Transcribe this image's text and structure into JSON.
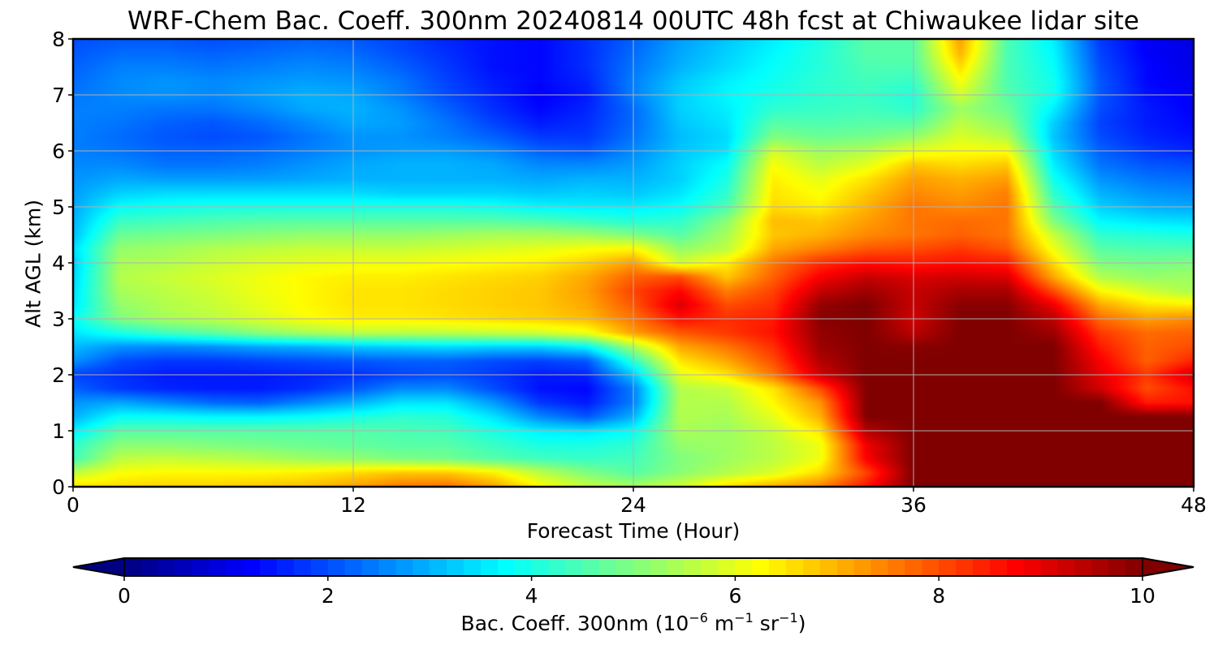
{
  "chart_data": {
    "type": "heatmap",
    "title": "WRF-Chem Bac. Coeff. 300nm  20240814 00UTC 48h fcst at Chiwaukee lidar site",
    "xlabel": "Forecast Time (Hour)",
    "ylabel": "Alt AGL (km)",
    "xlim": [
      0,
      48
    ],
    "ylim": [
      0,
      8
    ],
    "xticks": [
      0,
      12,
      24,
      36,
      48
    ],
    "yticks": [
      0,
      1,
      2,
      3,
      4,
      5,
      6,
      7,
      8
    ],
    "grid": true,
    "colormap": "jet",
    "colorbar": {
      "orientation": "horizontal",
      "position": "bottom",
      "range": [
        0,
        10
      ],
      "extend": "both",
      "ticks": [
        0,
        2,
        4,
        6,
        8,
        10
      ],
      "label_prefix": "Bac. Coeff. 300nm  (10",
      "label_exp1": "−6",
      "label_mid": " m",
      "label_exp2": "−1",
      "label_mid2": " sr",
      "label_exp3": "−1",
      "label_suffix": ")"
    },
    "x": [
      0,
      2,
      4,
      6,
      8,
      10,
      12,
      14,
      16,
      18,
      20,
      22,
      24,
      26,
      28,
      30,
      32,
      34,
      36,
      38,
      40,
      42,
      44,
      46,
      48
    ],
    "y": [
      0,
      0.25,
      0.5,
      0.75,
      1,
      1.25,
      1.5,
      1.75,
      2,
      2.25,
      2.5,
      2.75,
      3,
      3.25,
      3.5,
      3.75,
      4,
      4.25,
      4.5,
      4.75,
      5,
      5.25,
      5.5,
      5.75,
      6,
      6.25,
      6.5,
      6.75,
      7,
      7.25,
      7.5,
      7.75,
      8
    ],
    "values": [
      [
        6.6,
        6.6,
        6.7,
        6.7,
        6.8,
        6.9,
        7.2,
        7.6,
        7.7,
        7.2,
        6.3,
        5.7,
        5.4,
        5.8,
        6.6,
        7.1,
        7.5,
        8.6,
        10,
        10,
        10,
        10,
        10,
        10,
        10
      ],
      [
        5.6,
        6.2,
        6.3,
        6.3,
        6.3,
        6.4,
        6.6,
        6.8,
        6.8,
        6.4,
        5.6,
        5.0,
        4.6,
        5.1,
        5.5,
        5.9,
        6.6,
        8.1,
        10,
        10,
        10,
        10,
        10,
        10,
        10
      ],
      [
        4.4,
        5.6,
        5.7,
        5.6,
        5.5,
        5.3,
        5.2,
        5.0,
        4.9,
        4.6,
        4.4,
        4.3,
        4.4,
        5.0,
        5.3,
        5.6,
        6.1,
        8.8,
        10,
        10,
        10,
        10,
        10,
        10,
        10
      ],
      [
        4.2,
        5.1,
        5.1,
        5.0,
        4.9,
        4.8,
        4.7,
        4.6,
        4.6,
        4.3,
        4.0,
        4.0,
        4.2,
        5.2,
        5.3,
        5.6,
        6.1,
        8.9,
        10,
        10,
        10,
        10,
        10,
        10,
        10
      ],
      [
        3.6,
        4.6,
        4.6,
        4.6,
        4.6,
        4.6,
        4.6,
        4.5,
        4.4,
        4.0,
        3.6,
        3.5,
        3.8,
        5.4,
        5.3,
        5.7,
        6.5,
        9.5,
        10,
        10,
        10,
        10,
        10,
        10,
        10
      ],
      [
        3.0,
        3.8,
        3.8,
        3.7,
        3.7,
        3.8,
        4.0,
        4.2,
        4.1,
        3.5,
        2.6,
        2.1,
        3.0,
        5.5,
        5.4,
        6.0,
        7.0,
        10,
        10,
        10,
        10,
        10,
        10,
        10,
        10
      ],
      [
        2.7,
        2.9,
        2.6,
        2.3,
        2.2,
        2.6,
        3.0,
        3.5,
        3.5,
        2.8,
        1.8,
        1.5,
        2.5,
        5.5,
        5.5,
        6.3,
        7.3,
        10,
        10,
        10,
        10,
        10,
        10,
        8.5,
        8.6
      ],
      [
        2.2,
        1.8,
        1.6,
        1.5,
        1.5,
        1.7,
        2.1,
        2.6,
        2.6,
        2.0,
        1.4,
        1.3,
        2.5,
        5.5,
        5.7,
        6.5,
        8.0,
        10,
        10,
        10,
        10,
        10,
        9.2,
        8.0,
        8.6
      ],
      [
        1.9,
        1.7,
        1.5,
        1.5,
        1.5,
        1.6,
        1.7,
        1.9,
        2.0,
        1.8,
        1.5,
        1.6,
        3.2,
        6.0,
        6.5,
        7.6,
        9.2,
        10,
        10,
        10,
        10,
        10,
        9.0,
        8.2,
        9.2
      ],
      [
        2.7,
        2.0,
        1.8,
        1.8,
        1.9,
        2.0,
        2.1,
        2.2,
        2.2,
        2.0,
        1.9,
        2.1,
        4.2,
        6.5,
        7.1,
        8.0,
        9.5,
        10,
        10,
        10,
        10,
        10,
        8.8,
        7.8,
        8.4
      ],
      [
        3.1,
        2.7,
        2.6,
        2.7,
        2.9,
        3.0,
        3.2,
        3.3,
        3.4,
        3.3,
        3.3,
        3.7,
        5.4,
        7.1,
        7.6,
        8.3,
        9.7,
        10,
        9.9,
        10,
        10,
        10,
        8.5,
        7.8,
        8.0
      ],
      [
        3.5,
        4.0,
        4.4,
        4.7,
        5.1,
        5.4,
        5.6,
        5.6,
        5.6,
        5.7,
        5.8,
        6.1,
        7.2,
        7.9,
        8.2,
        8.6,
        9.8,
        10,
        9.4,
        10,
        10,
        9.7,
        8.2,
        7.7,
        7.8
      ],
      [
        3.8,
        5.0,
        5.4,
        5.6,
        5.9,
        6.2,
        6.4,
        6.4,
        6.5,
        6.6,
        6.7,
        6.9,
        7.6,
        8.6,
        8.3,
        8.5,
        9.9,
        10,
        9.2,
        10,
        10,
        9.4,
        7.7,
        7.2,
        7.4
      ],
      [
        3.5,
        5.2,
        5.5,
        5.7,
        6.0,
        6.3,
        6.5,
        6.5,
        6.6,
        6.7,
        6.8,
        7.1,
        7.9,
        9.1,
        8.0,
        8.3,
        9.8,
        10,
        9.3,
        9.9,
        9.9,
        8.9,
        7.1,
        6.5,
        6.4
      ],
      [
        3.4,
        5.4,
        5.6,
        5.8,
        6.1,
        6.3,
        6.5,
        6.5,
        6.6,
        6.7,
        6.8,
        7.2,
        8.1,
        8.7,
        7.5,
        8.1,
        9.3,
        9.7,
        9.3,
        9.6,
        9.6,
        8.0,
        6.3,
        5.8,
        5.4
      ],
      [
        3.3,
        5.5,
        5.7,
        5.9,
        6.1,
        6.3,
        6.4,
        6.4,
        6.5,
        6.6,
        6.7,
        7.1,
        7.8,
        8.0,
        6.8,
        7.8,
        8.8,
        9.3,
        9.1,
        9.2,
        9.1,
        7.1,
        5.5,
        5.2,
        5.3
      ],
      [
        3.2,
        5.4,
        5.5,
        5.7,
        5.9,
        6.0,
        6.1,
        6.1,
        6.2,
        6.3,
        6.4,
        6.7,
        7.2,
        5.8,
        6.4,
        7.6,
        8.3,
        8.6,
        8.5,
        8.6,
        8.5,
        6.6,
        5.0,
        4.9,
        5.0
      ],
      [
        3.4,
        5.2,
        5.3,
        5.5,
        5.6,
        5.7,
        5.7,
        5.7,
        5.8,
        5.9,
        6.0,
        6.2,
        6.3,
        5.2,
        5.6,
        7.1,
        7.5,
        7.9,
        8.0,
        8.2,
        7.9,
        6.1,
        4.6,
        4.5,
        4.5
      ],
      [
        3.1,
        4.8,
        4.9,
        5.0,
        5.1,
        5.2,
        5.2,
        5.2,
        5.3,
        5.4,
        5.4,
        5.3,
        5.0,
        4.6,
        5.4,
        6.8,
        7.0,
        7.4,
        7.6,
        7.8,
        7.6,
        5.7,
        4.2,
        4.1,
        4.0
      ],
      [
        3.0,
        4.3,
        4.4,
        4.5,
        4.6,
        4.6,
        4.6,
        4.6,
        4.6,
        4.6,
        4.5,
        4.3,
        4.1,
        4.2,
        5.1,
        6.9,
        6.8,
        7.2,
        7.6,
        7.7,
        7.6,
        5.0,
        3.7,
        3.5,
        3.4
      ],
      [
        2.9,
        3.8,
        3.9,
        4.0,
        4.0,
        4.0,
        4.0,
        4.0,
        4.0,
        3.9,
        3.7,
        3.6,
        3.6,
        3.8,
        4.5,
        6.6,
        6.4,
        7.0,
        7.6,
        7.4,
        7.6,
        4.6,
        3.3,
        3.0,
        2.9
      ],
      [
        2.8,
        3.3,
        3.4,
        3.4,
        3.4,
        3.4,
        3.4,
        3.3,
        3.3,
        3.3,
        3.2,
        3.3,
        3.2,
        3.5,
        4.2,
        6.5,
        6.2,
        6.8,
        7.4,
        7.2,
        7.5,
        4.2,
        3.0,
        2.7,
        2.6
      ],
      [
        2.7,
        2.9,
        2.8,
        2.8,
        2.8,
        2.9,
        3.0,
        3.0,
        3.0,
        3.0,
        2.9,
        3.0,
        3.0,
        3.3,
        4.0,
        6.4,
        6.0,
        6.5,
        7.2,
        7.0,
        7.2,
        3.9,
        2.7,
        2.4,
        2.3
      ],
      [
        2.6,
        2.6,
        2.4,
        2.4,
        2.5,
        2.7,
        2.9,
        3.0,
        3.0,
        2.9,
        2.6,
        2.6,
        2.8,
        3.3,
        3.8,
        6.2,
        5.6,
        6.0,
        6.8,
        6.6,
        6.8,
        3.6,
        2.4,
        2.1,
        2.0
      ],
      [
        2.5,
        2.4,
        2.2,
        2.2,
        2.3,
        2.5,
        2.7,
        2.8,
        2.8,
        2.6,
        2.2,
        2.1,
        2.6,
        3.2,
        3.5,
        5.8,
        5.3,
        5.5,
        6.0,
        6.2,
        6.2,
        3.4,
        2.2,
        1.8,
        1.6
      ],
      [
        2.5,
        2.3,
        2.1,
        2.0,
        2.1,
        2.4,
        2.7,
        2.7,
        2.5,
        2.2,
        1.8,
        1.8,
        2.4,
        3.1,
        3.4,
        5.0,
        4.8,
        4.9,
        5.2,
        5.9,
        5.5,
        3.2,
        2.0,
        1.6,
        1.4
      ],
      [
        2.5,
        2.4,
        2.2,
        2.1,
        2.3,
        2.6,
        2.9,
        2.8,
        2.4,
        1.9,
        1.5,
        1.7,
        2.3,
        3.2,
        3.5,
        4.6,
        4.5,
        4.6,
        4.6,
        5.6,
        5.1,
        3.3,
        1.9,
        1.5,
        1.3
      ],
      [
        2.5,
        2.5,
        2.4,
        2.4,
        2.6,
        2.9,
        3.0,
        2.7,
        2.2,
        1.7,
        1.3,
        1.6,
        2.3,
        3.3,
        3.6,
        4.2,
        4.3,
        4.4,
        4.2,
        5.3,
        4.8,
        3.6,
        2.0,
        1.5,
        1.2
      ],
      [
        2.4,
        2.6,
        2.7,
        2.6,
        2.8,
        3.0,
        2.9,
        2.5,
        2.0,
        1.6,
        1.2,
        1.5,
        2.5,
        3.3,
        3.7,
        4.0,
        4.2,
        4.3,
        4.1,
        5.8,
        4.6,
        3.9,
        2.1,
        1.4,
        1.2
      ],
      [
        2.3,
        2.6,
        2.7,
        2.6,
        2.7,
        2.8,
        2.7,
        2.4,
        1.9,
        1.5,
        1.3,
        1.6,
        2.5,
        3.2,
        3.6,
        3.9,
        4.2,
        4.4,
        4.3,
        6.2,
        4.5,
        3.9,
        2.1,
        1.3,
        1.1
      ],
      [
        2.2,
        2.5,
        2.5,
        2.4,
        2.5,
        2.6,
        2.5,
        2.2,
        1.8,
        1.4,
        1.3,
        1.7,
        2.4,
        3.0,
        3.4,
        3.8,
        4.1,
        4.5,
        4.5,
        6.6,
        4.5,
        3.8,
        2.0,
        1.3,
        1.0
      ],
      [
        2.1,
        2.3,
        2.3,
        2.2,
        2.3,
        2.4,
        2.3,
        2.0,
        1.7,
        1.4,
        1.3,
        1.7,
        2.3,
        2.9,
        3.3,
        3.7,
        4.1,
        4.6,
        4.6,
        7.0,
        4.5,
        3.7,
        1.9,
        1.2,
        1.0
      ],
      [
        2.0,
        2.1,
        2.1,
        2.0,
        2.1,
        2.2,
        2.1,
        1.9,
        1.6,
        1.4,
        1.3,
        1.7,
        2.2,
        2.8,
        3.2,
        3.6,
        4.0,
        4.6,
        4.6,
        7.2,
        4.5,
        3.6,
        1.8,
        1.2,
        1.0
      ]
    ]
  }
}
